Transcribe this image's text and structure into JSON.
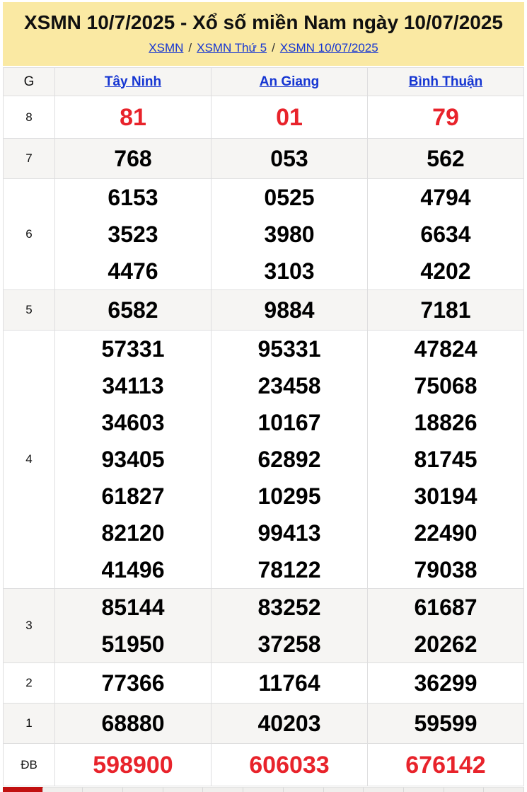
{
  "header": {
    "title": "XSMN 10/7/2025 - Xổ số miền Nam ngày 10/07/2025",
    "breadcrumb": [
      "XSMN",
      "XSMN Thứ 5",
      "XSMN 10/07/2025"
    ],
    "separator": "/"
  },
  "table": {
    "corner_label": "G",
    "provinces": [
      "Tây Ninh",
      "An Giang",
      "Bình Thuận"
    ],
    "rows": [
      {
        "prize": "8",
        "highlight": true,
        "values": [
          [
            "81"
          ],
          [
            "01"
          ],
          [
            "79"
          ]
        ]
      },
      {
        "prize": "7",
        "highlight": false,
        "values": [
          [
            "768"
          ],
          [
            "053"
          ],
          [
            "562"
          ]
        ]
      },
      {
        "prize": "6",
        "highlight": false,
        "values": [
          [
            "6153",
            "3523",
            "4476"
          ],
          [
            "0525",
            "3980",
            "3103"
          ],
          [
            "4794",
            "6634",
            "4202"
          ]
        ]
      },
      {
        "prize": "5",
        "highlight": false,
        "values": [
          [
            "6582"
          ],
          [
            "9884"
          ],
          [
            "7181"
          ]
        ]
      },
      {
        "prize": "4",
        "highlight": false,
        "values": [
          [
            "57331",
            "34113",
            "34603",
            "93405",
            "61827",
            "82120",
            "41496"
          ],
          [
            "95331",
            "23458",
            "10167",
            "62892",
            "10295",
            "99413",
            "78122"
          ],
          [
            "47824",
            "75068",
            "18826",
            "81745",
            "30194",
            "22490",
            "79038"
          ]
        ]
      },
      {
        "prize": "3",
        "highlight": false,
        "values": [
          [
            "85144",
            "51950"
          ],
          [
            "83252",
            "37258"
          ],
          [
            "61687",
            "20262"
          ]
        ]
      },
      {
        "prize": "2",
        "highlight": false,
        "values": [
          [
            "77366"
          ],
          [
            "11764"
          ],
          [
            "36299"
          ]
        ]
      },
      {
        "prize": "1",
        "highlight": false,
        "values": [
          [
            "68880"
          ],
          [
            "40203"
          ],
          [
            "59599"
          ]
        ]
      },
      {
        "prize": "ĐB",
        "highlight": true,
        "values": [
          [
            "598900"
          ],
          [
            "606033"
          ],
          [
            "676142"
          ]
        ]
      }
    ]
  },
  "bottom_strip": {
    "cell_count": 13,
    "highlighted_cell_index": 0
  },
  "colors": {
    "banner_background": "#fae9a3",
    "link_blue": "#1535d2",
    "highlight_red": "#e8232b",
    "row_alternate": "#f6f5f3",
    "strip_red": "#c11010"
  }
}
